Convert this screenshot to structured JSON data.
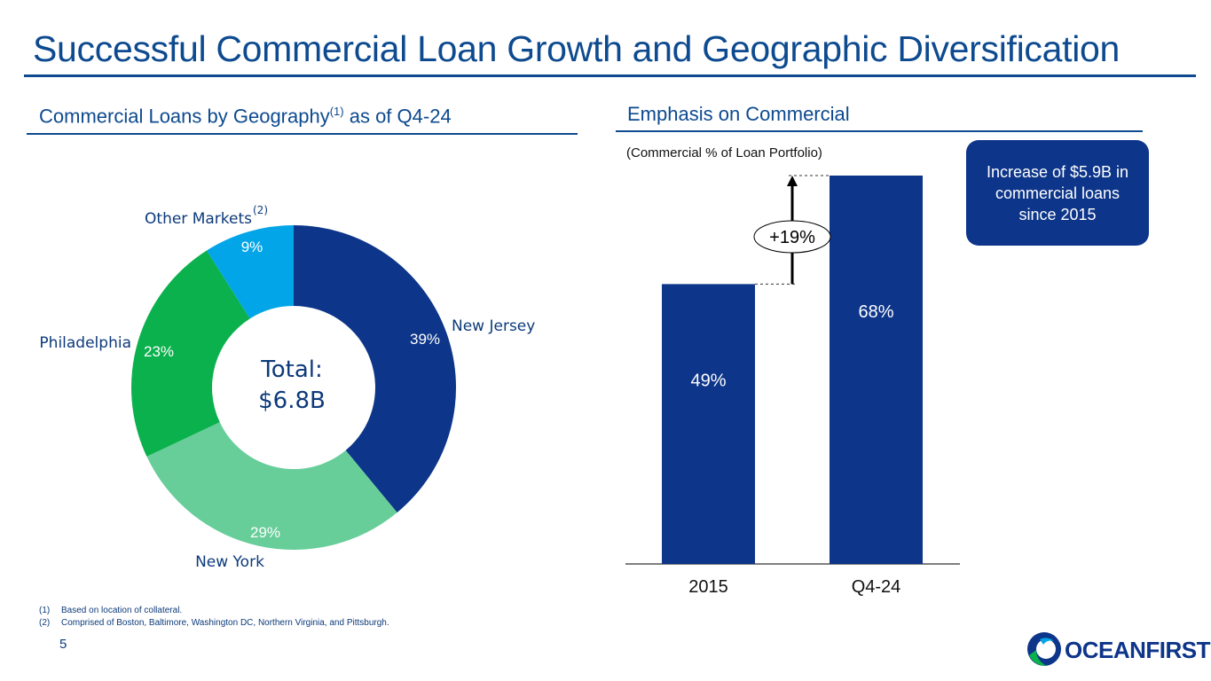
{
  "title": "Successful Commercial Loan Growth and Geographic Diversification",
  "left_section": {
    "heading_pre": "Commercial Loans by Geography",
    "heading_sup": "(1)",
    "heading_post": " as of Q4-24"
  },
  "right_section": {
    "heading": "Emphasis on Commercial",
    "subheading": "(Commercial % of Loan Portfolio)",
    "callout": "Increase of $5.9B in commercial loans since 2015"
  },
  "chart_data": [
    {
      "type": "pie",
      "style": "donut",
      "center_label_line1": "Total:",
      "center_label_line2": "$6.8B",
      "slices": [
        {
          "label": "New Jersey",
          "value": 39,
          "value_label": "39%",
          "color": "#0d3589"
        },
        {
          "label": "New York",
          "value": 29,
          "value_label": "29%",
          "color": "#67ce9a"
        },
        {
          "label": "Philadelphia",
          "value": 23,
          "value_label": "23%",
          "color": "#0bb14d"
        },
        {
          "label": "Other Markets",
          "label_sup": "(2)",
          "value": 9,
          "value_label": "9%",
          "color": "#02a6e8"
        }
      ]
    },
    {
      "type": "bar",
      "categories": [
        "2015",
        "Q4-24"
      ],
      "values": [
        49,
        68
      ],
      "value_labels": [
        "49%",
        "68%"
      ],
      "color": "#0d3589",
      "ylim": [
        0,
        68
      ],
      "annotation": "+19%"
    }
  ],
  "footnotes": [
    {
      "num": "(1)",
      "text": "Based on location of collateral."
    },
    {
      "num": "(2)",
      "text": "Comprised of Boston, Baltimore, Washington DC, Northern Virginia, and Pittsburgh."
    }
  ],
  "page_number": "5",
  "logo_text": "OCEANFIRST"
}
